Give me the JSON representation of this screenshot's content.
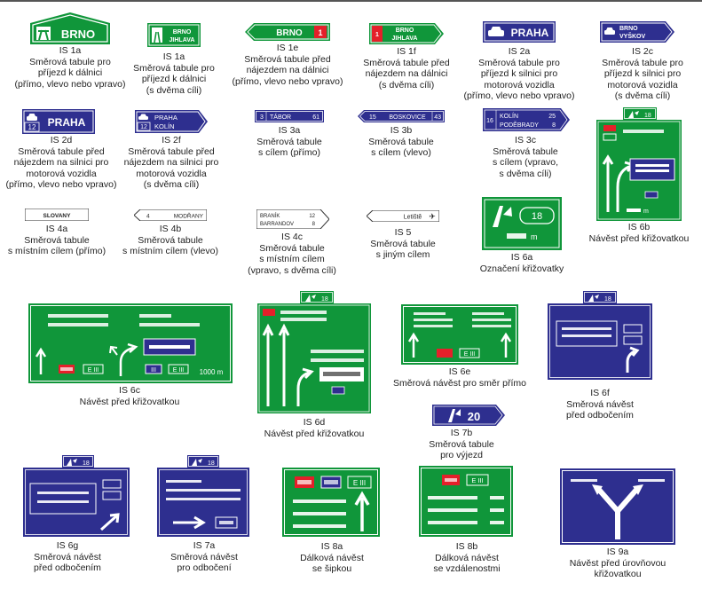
{
  "colors": {
    "green": "#10963a",
    "blue": "#2e2f8f",
    "red": "#e4202a",
    "white": "#ffffff",
    "text": "#222222"
  },
  "signs": [
    {
      "id": "is1a-1",
      "code": "IS 1a",
      "lines": [
        "Směrová tabule pro",
        "příjezd k dálnici",
        "(přímo, vlevo nebo vpravo)"
      ],
      "texts": [
        "BRNO"
      ],
      "icon": "motorway-icon"
    },
    {
      "id": "is1a-2",
      "code": "IS 1a",
      "lines": [
        "Směrová tabule pro",
        "příjezd k dálnici",
        "(s dvěma cíli)"
      ],
      "texts": [
        "BRNO",
        "JIHLAVA"
      ],
      "icon": "motorway-icon"
    },
    {
      "id": "is1e",
      "code": "IS 1e",
      "lines": [
        "Směrová tabule před",
        "nájezdem na dálnici",
        "(přímo, vlevo nebo vpravo)"
      ],
      "texts": [
        "BRNO",
        "1"
      ]
    },
    {
      "id": "is1f",
      "code": "IS 1f",
      "lines": [
        "Směrová tabule před",
        "nájezdem na dálnici",
        "(s dvěma cíli)"
      ],
      "texts": [
        "1",
        "BRNO",
        "JIHLAVA"
      ]
    },
    {
      "id": "is2a",
      "code": "IS 2a",
      "lines": [
        "Směrová tabule pro",
        "příjezd k silnici pro",
        "motorová vozidla",
        "(přímo, vlevo nebo vpravo)"
      ],
      "texts": [
        "PRAHA"
      ],
      "icon": "car-icon"
    },
    {
      "id": "is2c",
      "code": "IS 2c",
      "lines": [
        "Směrová tabule pro",
        "příjezd k silnici pro",
        "motorová vozidla",
        "(s dvěma cíli)"
      ],
      "texts": [
        "BRNO",
        "VYŠKOV"
      ],
      "icon": "car-icon"
    },
    {
      "id": "is2d",
      "code": "IS 2d",
      "lines": [
        "Směrová tabule před",
        "nájezdem na silnici pro",
        "motorová vozidla",
        "(přímo, vlevo nebo vpravo)"
      ],
      "texts": [
        "PRAHA",
        "12"
      ],
      "icon": "car-icon"
    },
    {
      "id": "is2f",
      "code": "IS 2f",
      "lines": [
        "Směrová tabule před",
        "nájezdem na silnici pro",
        "motorová vozidla",
        "(s dvěma cíli)"
      ],
      "texts": [
        "PRAHA",
        "KOLÍN",
        "12"
      ],
      "icon": "car-icon"
    },
    {
      "id": "is3a",
      "code": "IS 3a",
      "lines": [
        "Směrová tabule",
        "s cílem (přímo)"
      ],
      "texts": [
        "3",
        "TÁBOR",
        "61"
      ]
    },
    {
      "id": "is3b",
      "code": "IS 3b",
      "lines": [
        "Směrová tabule",
        "s cílem (vlevo)"
      ],
      "texts": [
        "15",
        "BOSKOVICE",
        "43"
      ]
    },
    {
      "id": "is3c",
      "code": "IS 3c",
      "lines": [
        "Směrová tabule",
        "s cílem (vpravo,",
        "s dvěma cíli)"
      ],
      "texts": [
        "16",
        "KOLÍN",
        "25",
        "PODĚBRADY",
        "8"
      ]
    },
    {
      "id": "is6b",
      "code": "IS 6b",
      "lines": [
        "Návěst před křižovatkou"
      ],
      "texts": [
        "18",
        "m"
      ],
      "icon": "junction-icon"
    },
    {
      "id": "is4a",
      "code": "IS 4a",
      "lines": [
        "Směrová tabule",
        "s místním cílem (přímo)"
      ],
      "texts": [
        "SLOVANY"
      ]
    },
    {
      "id": "is4b",
      "code": "IS 4b",
      "lines": [
        "Směrová tabule",
        "s místním cílem (vlevo)"
      ],
      "texts": [
        "4",
        "MODŘANY"
      ]
    },
    {
      "id": "is4c",
      "code": "IS 4c",
      "lines": [
        "Směrová tabule",
        "s místním cílem",
        "(vpravo, s dvěma cíli)"
      ],
      "texts": [
        "BRANÍK",
        "12",
        "BARRANDOV",
        "8"
      ]
    },
    {
      "id": "is5",
      "code": "IS 5",
      "lines": [
        "Směrová tabule",
        "s jiným cílem"
      ],
      "texts": [
        "Letiště"
      ],
      "icon": "airplane-icon"
    },
    {
      "id": "is6a",
      "code": "IS 6a",
      "lines": [
        "Označení křižovatky"
      ],
      "texts": [
        "18",
        "m"
      ],
      "icon": "junction-icon"
    },
    {
      "id": "is6c",
      "code": "IS 6c",
      "lines": [
        "Návěst před křižovatkou"
      ],
      "texts": [
        "E III",
        "III",
        "E III",
        "1000 m"
      ]
    },
    {
      "id": "is6d",
      "code": "IS 6d",
      "lines": [
        "Návěst před křižovatkou"
      ],
      "texts": [
        "18"
      ],
      "icon": "junction-icon"
    },
    {
      "id": "is6e",
      "code": "IS 6e",
      "lines": [
        "Směrová návěst pro směr přímo"
      ],
      "texts": [
        "E III"
      ]
    },
    {
      "id": "is6f",
      "code": "IS 6f",
      "lines": [
        "Směrová návěst",
        "před odbočením"
      ],
      "texts": [
        "18"
      ],
      "icon": "junction-icon"
    },
    {
      "id": "is7b",
      "code": "IS 7b",
      "lines": [
        "Směrová tabule",
        "pro výjezd"
      ],
      "texts": [
        "20"
      ],
      "icon": "junction-icon"
    },
    {
      "id": "is6g",
      "code": "IS 6g",
      "lines": [
        "Směrová návěst",
        "před odbočením"
      ],
      "texts": [
        "18"
      ],
      "icon": "junction-icon"
    },
    {
      "id": "is7a",
      "code": "IS 7a",
      "lines": [
        "Směrová návěst",
        "pro odbočení"
      ],
      "texts": [
        "18"
      ],
      "icon": "junction-icon"
    },
    {
      "id": "is8a",
      "code": "IS 8a",
      "lines": [
        "Dálková návěst",
        "se šipkou"
      ],
      "texts": [
        "E III"
      ]
    },
    {
      "id": "is8b",
      "code": "IS 8b",
      "lines": [
        "Dálková návěst",
        "se vzdálenostmi"
      ],
      "texts": [
        "E III"
      ]
    },
    {
      "id": "is9a",
      "code": "IS 9a",
      "lines": [
        "Návěst před úrovňovou",
        "křižovatkou"
      ],
      "texts": []
    }
  ]
}
